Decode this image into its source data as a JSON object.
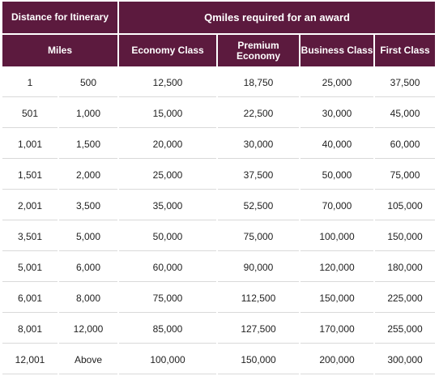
{
  "header": {
    "distance_label": "Distance for Itinerary",
    "qmiles_label": "Qmiles required for an award",
    "miles_label": "Miles",
    "classes": [
      "Economy Class",
      "Premium Economy",
      "Business Class",
      "First Class"
    ]
  },
  "rows": [
    [
      "1",
      "500",
      "12,500",
      "18,750",
      "25,000",
      "37,500"
    ],
    [
      "501",
      "1,000",
      "15,000",
      "22,500",
      "30,000",
      "45,000"
    ],
    [
      "1,001",
      "1,500",
      "20,000",
      "30,000",
      "40,000",
      "60,000"
    ],
    [
      "1,501",
      "2,000",
      "25,000",
      "37,500",
      "50,000",
      "75,000"
    ],
    [
      "2,001",
      "3,500",
      "35,000",
      "52,500",
      "70,000",
      "105,000"
    ],
    [
      "3,501",
      "5,000",
      "50,000",
      "75,000",
      "100,000",
      "150,000"
    ],
    [
      "5,001",
      "6,000",
      "60,000",
      "90,000",
      "120,000",
      "180,000"
    ],
    [
      "6,001",
      "8,000",
      "75,000",
      "112,500",
      "150,000",
      "225,000"
    ],
    [
      "8,001",
      "12,000",
      "85,000",
      "127,500",
      "170,000",
      "255,000"
    ],
    [
      "12,001",
      "Above",
      "100,000",
      "150,000",
      "200,000",
      "300,000"
    ]
  ]
}
